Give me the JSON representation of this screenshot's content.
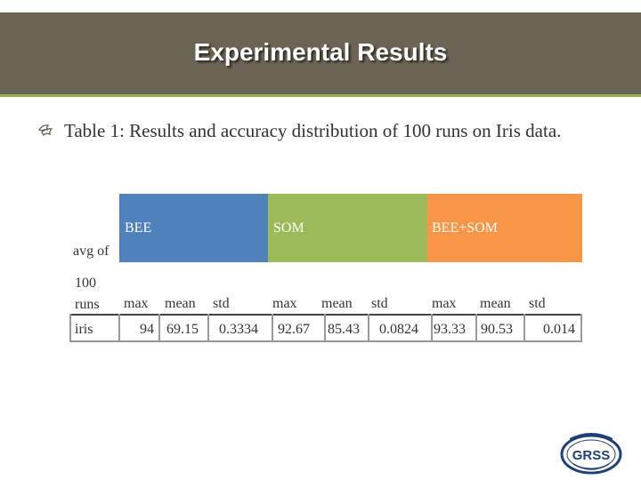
{
  "slide": {
    "title": "Experimental Results",
    "caption": "Table 1: Results and accuracy distribution of 100 runs on Iris data."
  },
  "table": {
    "row_header_top": "avg of",
    "row_header_bottom": "100 runs",
    "groups": [
      {
        "label": "BEE",
        "color": "#4f81bd"
      },
      {
        "label": "SOM",
        "color": "#9bbb59"
      },
      {
        "label": "BEE+SOM",
        "color": "#f79646"
      }
    ],
    "subheaders": [
      "max",
      "mean",
      "std",
      "max",
      "mean",
      "std",
      "max",
      "mean",
      "std"
    ],
    "rows": [
      {
        "name": "iris",
        "values": [
          "94",
          "69.15",
          "0.3334",
          "92.67",
          "85.43",
          "0.0824",
          "93.33",
          "90.53",
          "0.014"
        ]
      }
    ]
  },
  "logo": {
    "text": "GRSS",
    "icon": "grss-logo-icon"
  }
}
